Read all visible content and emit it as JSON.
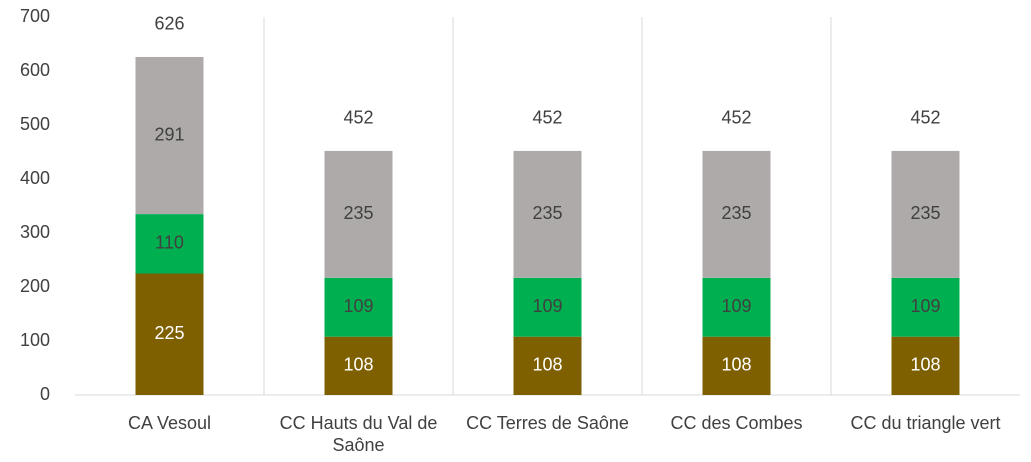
{
  "chart_data": {
    "type": "stacked_bar",
    "categories": [
      "CA Vesoul",
      "CC Hauts du Val de Saône",
      "CC Terres de Saône",
      "CC des Combes",
      "CC du triangle vert"
    ],
    "series": [
      {
        "color": "#7f6000",
        "values": [
          225,
          108,
          108,
          108,
          108
        ]
      },
      {
        "color": "#00b050",
        "values": [
          110,
          109,
          109,
          109,
          109
        ]
      },
      {
        "color": "#aeaaaa",
        "values": [
          291,
          235,
          235,
          235,
          235
        ]
      }
    ],
    "totals": [
      626,
      452,
      452,
      452,
      452
    ],
    "ylim": [
      0,
      700
    ],
    "yticks": [
      0,
      100,
      200,
      300,
      400,
      500,
      600,
      700
    ],
    "grid": false
  }
}
